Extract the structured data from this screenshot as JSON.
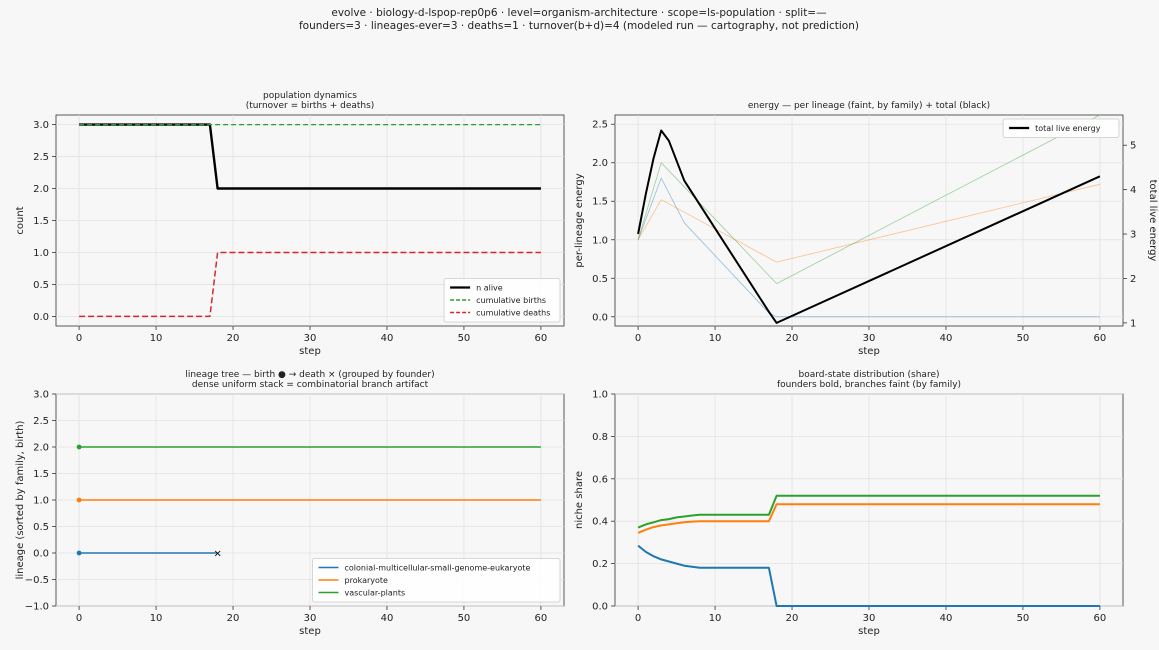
{
  "figure": {
    "suptitle_line1": "evolve · biology-d-lspop-rep0p6 · level=organism-architecture · scope=ls-population · split=—",
    "suptitle_line2": "founders=3 · lineages-ever=3 · deaths=1 · turnover(b+d)=4   (modeled run — cartography, not prediction)"
  },
  "chart_data": [
    {
      "id": "population",
      "type": "line",
      "title": [
        "population dynamics",
        "(turnover = births + deaths)"
      ],
      "xlabel": "step",
      "ylabel": "count",
      "xlim": [
        -3,
        63
      ],
      "ylim": [
        -0.15,
        3.15
      ],
      "xticks": [
        0,
        10,
        20,
        30,
        40,
        50,
        60
      ],
      "yticks": [
        0.0,
        0.5,
        1.0,
        1.5,
        2.0,
        2.5,
        3.0
      ],
      "ytick_labels": [
        "0.0",
        "0.5",
        "1.0",
        "1.5",
        "2.0",
        "2.5",
        "3.0"
      ],
      "grid": true,
      "legend": "bottom-right",
      "series": [
        {
          "name": "n alive",
          "color": "#000000",
          "style": "solid",
          "width": 2.4,
          "x": [
            0,
            17,
            18,
            60
          ],
          "y": [
            3,
            3,
            2,
            2
          ]
        },
        {
          "name": "cumulative births",
          "color": "#2ca02c",
          "style": "dashed",
          "width": 1.2,
          "x": [
            0,
            60
          ],
          "y": [
            3,
            3
          ]
        },
        {
          "name": "cumulative deaths",
          "color": "#d62728",
          "style": "dashed",
          "width": 1.5,
          "x": [
            0,
            17,
            18,
            60
          ],
          "y": [
            0,
            0,
            1,
            1
          ]
        }
      ]
    },
    {
      "id": "energy",
      "type": "line",
      "title": [
        "energy — per lineage (faint, by family) + total (black)"
      ],
      "xlabel": "step",
      "ylabel": "per-lineage energy",
      "ylabel_right": "total live energy",
      "xlim": [
        -3,
        63
      ],
      "ylim": [
        -0.12,
        2.62
      ],
      "ylim_right": [
        0.93,
        5.68
      ],
      "xticks": [
        0,
        10,
        20,
        30,
        40,
        50,
        60
      ],
      "yticks": [
        0.0,
        0.5,
        1.0,
        1.5,
        2.0,
        2.5
      ],
      "ytick_labels": [
        "0.0",
        "0.5",
        "1.0",
        "1.5",
        "2.0",
        "2.5"
      ],
      "yticks_right": [
        1,
        2,
        3,
        4,
        5
      ],
      "grid": true,
      "legend": "top-right",
      "series": [
        {
          "name": "colonial-multicellular-small-genome-eukaryote",
          "color": "#1f77b4",
          "faint": true,
          "x": [
            0,
            3,
            6,
            17,
            18,
            60
          ],
          "y": [
            1.0,
            1.8,
            1.22,
            0.05,
            0.0,
            0.0
          ]
        },
        {
          "name": "prokaryote",
          "color": "#ff7f0e",
          "faint": true,
          "x": [
            0,
            3,
            18,
            60
          ],
          "y": [
            1.0,
            1.52,
            0.71,
            1.72
          ]
        },
        {
          "name": "vascular-plants",
          "color": "#2ca02c",
          "faint": true,
          "x": [
            0,
            3,
            18,
            60
          ],
          "y": [
            1.0,
            2.0,
            0.43,
            2.62
          ]
        },
        {
          "name": "total live energy",
          "color": "#000000",
          "axis": "right",
          "x": [
            0,
            1,
            2,
            3,
            4,
            6,
            17,
            18,
            60
          ],
          "y": [
            3.0,
            3.9,
            4.7,
            5.33,
            5.1,
            4.2,
            1.25,
            1.0,
            4.3
          ]
        }
      ]
    },
    {
      "id": "lineage_tree",
      "type": "line",
      "title": [
        "lineage tree — birth ● → death ×  (grouped by founder)",
        "dense uniform stack = combinatorial branch artifact"
      ],
      "xlabel": "step",
      "ylabel": "lineage (sorted by family, birth)",
      "xlim": [
        -3,
        63
      ],
      "ylim": [
        -1.0,
        3.0
      ],
      "xticks": [
        0,
        10,
        20,
        30,
        40,
        50,
        60
      ],
      "yticks": [
        -1.0,
        -0.5,
        0.0,
        0.5,
        1.0,
        1.5,
        2.0,
        2.5,
        3.0
      ],
      "ytick_labels": [
        "−1.0",
        "−0.5",
        "0.0",
        "0.5",
        "1.0",
        "1.5",
        "2.0",
        "2.5",
        "3.0"
      ],
      "grid": true,
      "legend": "bottom-right",
      "series": [
        {
          "name": "colonial-multicellular-small-genome-eukaryote",
          "color": "#1f77b4",
          "row": 0,
          "birth": 0,
          "end": 18,
          "died": true
        },
        {
          "name": "prokaryote",
          "color": "#ff7f0e",
          "row": 1,
          "birth": 0,
          "end": 60,
          "died": false
        },
        {
          "name": "vascular-plants",
          "color": "#2ca02c",
          "row": 2,
          "birth": 0,
          "end": 60,
          "died": false
        }
      ]
    },
    {
      "id": "board_share",
      "type": "line",
      "title": [
        "board-state distribution (share)",
        "founders bold, branches faint (by family)"
      ],
      "xlabel": "step",
      "ylabel": "niche share",
      "xlim": [
        -3,
        63
      ],
      "ylim": [
        0.0,
        1.0
      ],
      "xticks": [
        0,
        10,
        20,
        30,
        40,
        50,
        60
      ],
      "yticks": [
        0.0,
        0.2,
        0.4,
        0.6,
        0.8,
        1.0
      ],
      "ytick_labels": [
        "0.0",
        "0.2",
        "0.4",
        "0.6",
        "0.8",
        "1.0"
      ],
      "grid": true,
      "legend": "none",
      "series": [
        {
          "name": "colonial-multicellular-small-genome-eukaryote",
          "color": "#1f77b4",
          "x": [
            0,
            1,
            2,
            3,
            4,
            5,
            6,
            7,
            8,
            17,
            18,
            60
          ],
          "y": [
            0.285,
            0.255,
            0.235,
            0.22,
            0.21,
            0.2,
            0.19,
            0.185,
            0.18,
            0.18,
            0.0,
            0.0
          ]
        },
        {
          "name": "prokaryote",
          "color": "#ff7f0e",
          "x": [
            0,
            1,
            2,
            3,
            4,
            5,
            6,
            7,
            8,
            17,
            18,
            60
          ],
          "y": [
            0.345,
            0.36,
            0.372,
            0.38,
            0.385,
            0.39,
            0.395,
            0.398,
            0.4,
            0.4,
            0.48,
            0.48
          ]
        },
        {
          "name": "vascular-plants",
          "color": "#2ca02c",
          "x": [
            0,
            1,
            2,
            3,
            4,
            5,
            6,
            7,
            8,
            17,
            18,
            60
          ],
          "y": [
            0.37,
            0.385,
            0.395,
            0.405,
            0.41,
            0.418,
            0.422,
            0.427,
            0.43,
            0.43,
            0.52,
            0.52
          ]
        }
      ]
    }
  ]
}
